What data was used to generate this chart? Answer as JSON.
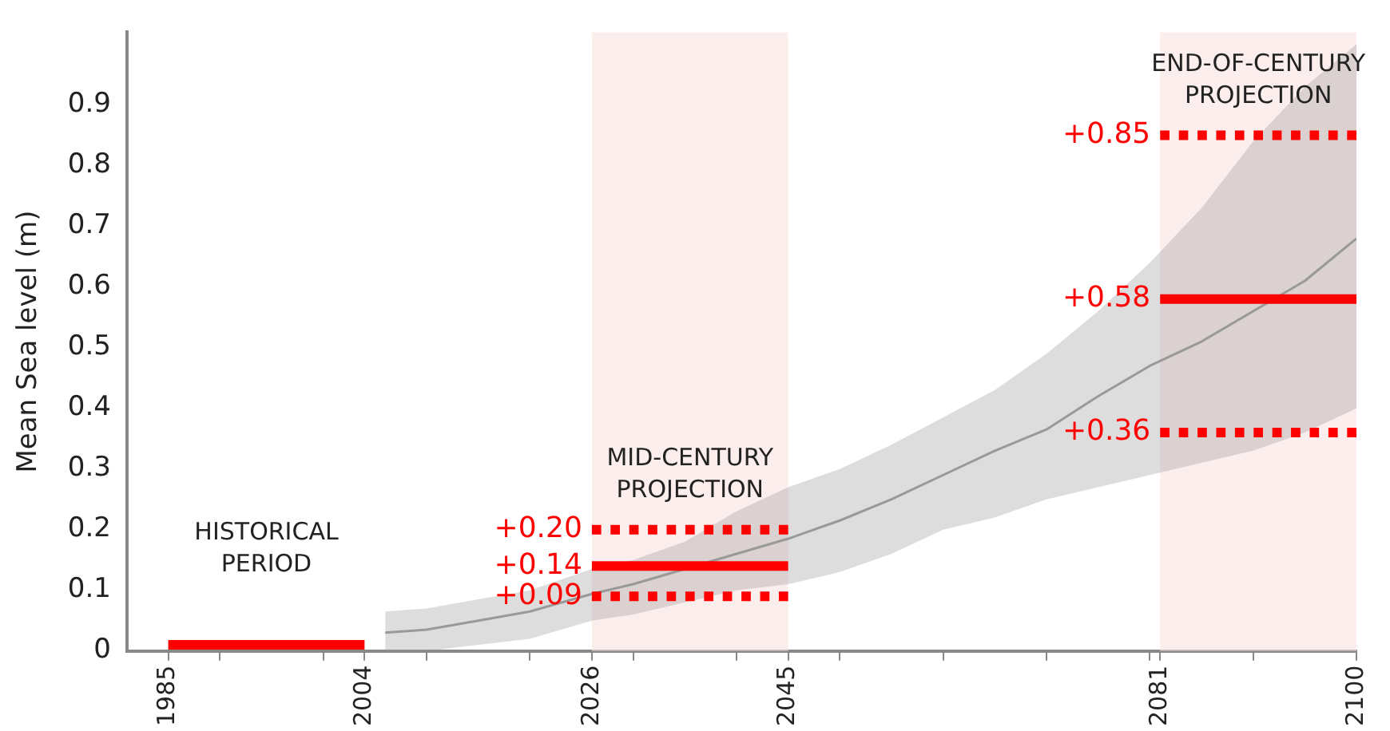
{
  "chart_data": {
    "type": "line",
    "ylabel": "Mean Sea level (m)",
    "xlim": [
      1981,
      2100
    ],
    "xticks": [
      1985,
      {
        "value": 1990,
        "label": null
      },
      {
        "value": 2000,
        "label": null
      },
      2004,
      {
        "value": 2010,
        "label": null
      },
      {
        "value": 2020,
        "label": null
      },
      2026,
      {
        "value": 2030,
        "label": null
      },
      {
        "value": 2040,
        "label": null
      },
      2045,
      {
        "value": 2050,
        "label": null
      },
      {
        "value": 2060,
        "label": null
      },
      {
        "value": 2070,
        "label": null
      },
      {
        "value": 2080,
        "label": null
      },
      2081,
      {
        "value": 2090,
        "label": null
      },
      2100
    ],
    "ylim": [
      0,
      1.02
    ],
    "yticks": [
      0,
      0.1,
      0.2,
      0.3,
      0.4,
      0.5,
      0.6,
      0.7,
      0.8,
      0.9
    ],
    "grid": false,
    "legend": false,
    "marker": "none",
    "bands": [
      {
        "axis": "x",
        "from": 2026,
        "to": 2045,
        "label": "MID-CENTURY PROJECTION",
        "color": "#fbe3e3"
      },
      {
        "axis": "x",
        "from": 2081,
        "to": 2100,
        "label": "END-OF-CENTURY PROJECTION",
        "color": "#fbe3e3"
      }
    ],
    "annotations": [
      "HISTORICAL PERIOD"
    ],
    "series": [
      {
        "type": "line",
        "color": "#999999",
        "x": [
          2006,
          2010,
          2015,
          2020,
          2026,
          2030,
          2035,
          2040,
          2045,
          2050,
          2055,
          2060,
          2065,
          2070,
          2075,
          2080,
          2085,
          2090,
          2095,
          2100
        ],
        "values": [
          0.03,
          0.035,
          0.05,
          0.065,
          0.094,
          0.11,
          0.135,
          0.16,
          0.185,
          0.215,
          0.25,
          0.29,
          0.33,
          0.365,
          0.42,
          0.47,
          0.51,
          0.56,
          0.61,
          0.68
        ],
        "lower": [
          0.0,
          0.0,
          0.01,
          0.02,
          0.05,
          0.06,
          0.08,
          0.1,
          0.11,
          0.13,
          0.16,
          0.2,
          0.22,
          0.25,
          0.27,
          0.29,
          0.31,
          0.33,
          0.36,
          0.4
        ],
        "upper": [
          0.065,
          0.07,
          0.085,
          0.1,
          0.135,
          0.15,
          0.18,
          0.23,
          0.27,
          0.3,
          0.34,
          0.385,
          0.43,
          0.49,
          0.56,
          0.64,
          0.73,
          0.84,
          0.93,
          1.0
        ]
      },
      {
        "type": "line",
        "color": "#ff0000",
        "x": [
          1985,
          2004
        ],
        "values": [
          0.01,
          0.01
        ],
        "line_style": "solid"
      },
      {
        "type": "line",
        "color": "#ff0000",
        "x": [
          2026,
          2045
        ],
        "values": [
          0.2,
          0.2
        ],
        "line_style": "dotted",
        "value_labels": [
          "+0.20",
          null
        ]
      },
      {
        "type": "line",
        "color": "#ff0000",
        "x": [
          2026,
          2045
        ],
        "values": [
          0.14,
          0.14
        ],
        "line_style": "solid",
        "value_labels": [
          "+0.14",
          null
        ]
      },
      {
        "type": "line",
        "color": "#ff0000",
        "x": [
          2026,
          2045
        ],
        "values": [
          0.09,
          0.09
        ],
        "line_style": "dotted",
        "value_labels": [
          "+0.09",
          null
        ]
      },
      {
        "type": "line",
        "color": "#ff0000",
        "x": [
          2081,
          2100
        ],
        "values": [
          0.85,
          0.85
        ],
        "line_style": "dotted",
        "value_labels": [
          "+0.85",
          null
        ]
      },
      {
        "type": "line",
        "color": "#ff0000",
        "x": [
          2081,
          2100
        ],
        "values": [
          0.58,
          0.58
        ],
        "line_style": "solid",
        "value_labels": [
          "+0.58",
          null
        ]
      },
      {
        "type": "line",
        "color": "#ff0000",
        "x": [
          2081,
          2100
        ],
        "values": [
          0.36,
          0.36
        ],
        "line_style": "dotted",
        "value_labels": [
          "+0.36",
          null
        ]
      }
    ]
  }
}
